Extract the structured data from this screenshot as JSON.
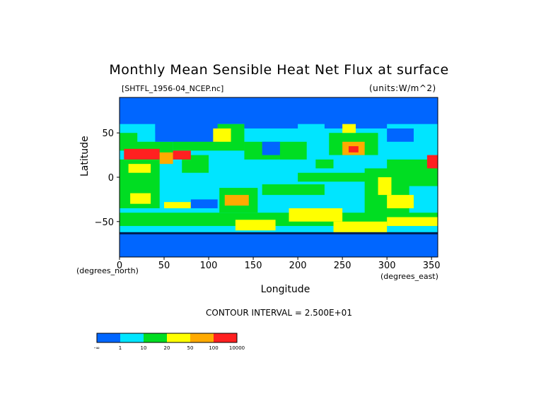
{
  "chart_data": {
    "type": "heatmap",
    "title": "Monthly Mean Sensible Heat Net Flux at surface",
    "subtitle_left": "[SHTFL_1956-04_NCEP.nc]",
    "subtitle_right": "(units:W/m^2)",
    "xlabel": "Longitude",
    "ylabel": "Latitude",
    "x_unit": "(degrees_north)",
    "x_unit_right": "(degrees_east)",
    "xlim": [
      0,
      357
    ],
    "ylim": [
      -90,
      90
    ],
    "x_ticks": [
      0,
      50,
      100,
      150,
      200,
      250,
      300,
      350
    ],
    "y_ticks": [
      50,
      0,
      -50
    ],
    "y_tick_labels": [
      "50",
      "0",
      "−50"
    ],
    "contour_interval": "CONTOUR INTERVAL = 2.500E+01",
    "colorbar": {
      "labels": [
        "-∞",
        "1",
        "10",
        "20",
        "50",
        "100",
        "10000"
      ],
      "colors": [
        "#0066ff",
        "#00e5ff",
        "#00dd22",
        "#ffff00",
        "#ffaa00",
        "#ff2020"
      ]
    },
    "map_colors": {
      "land_grid": "#00dd22",
      "ocean": "#00e5ff",
      "cold": "#0066ff",
      "low": "#ffff00",
      "mid": "#ffaa00",
      "high": "#ff2020"
    }
  }
}
